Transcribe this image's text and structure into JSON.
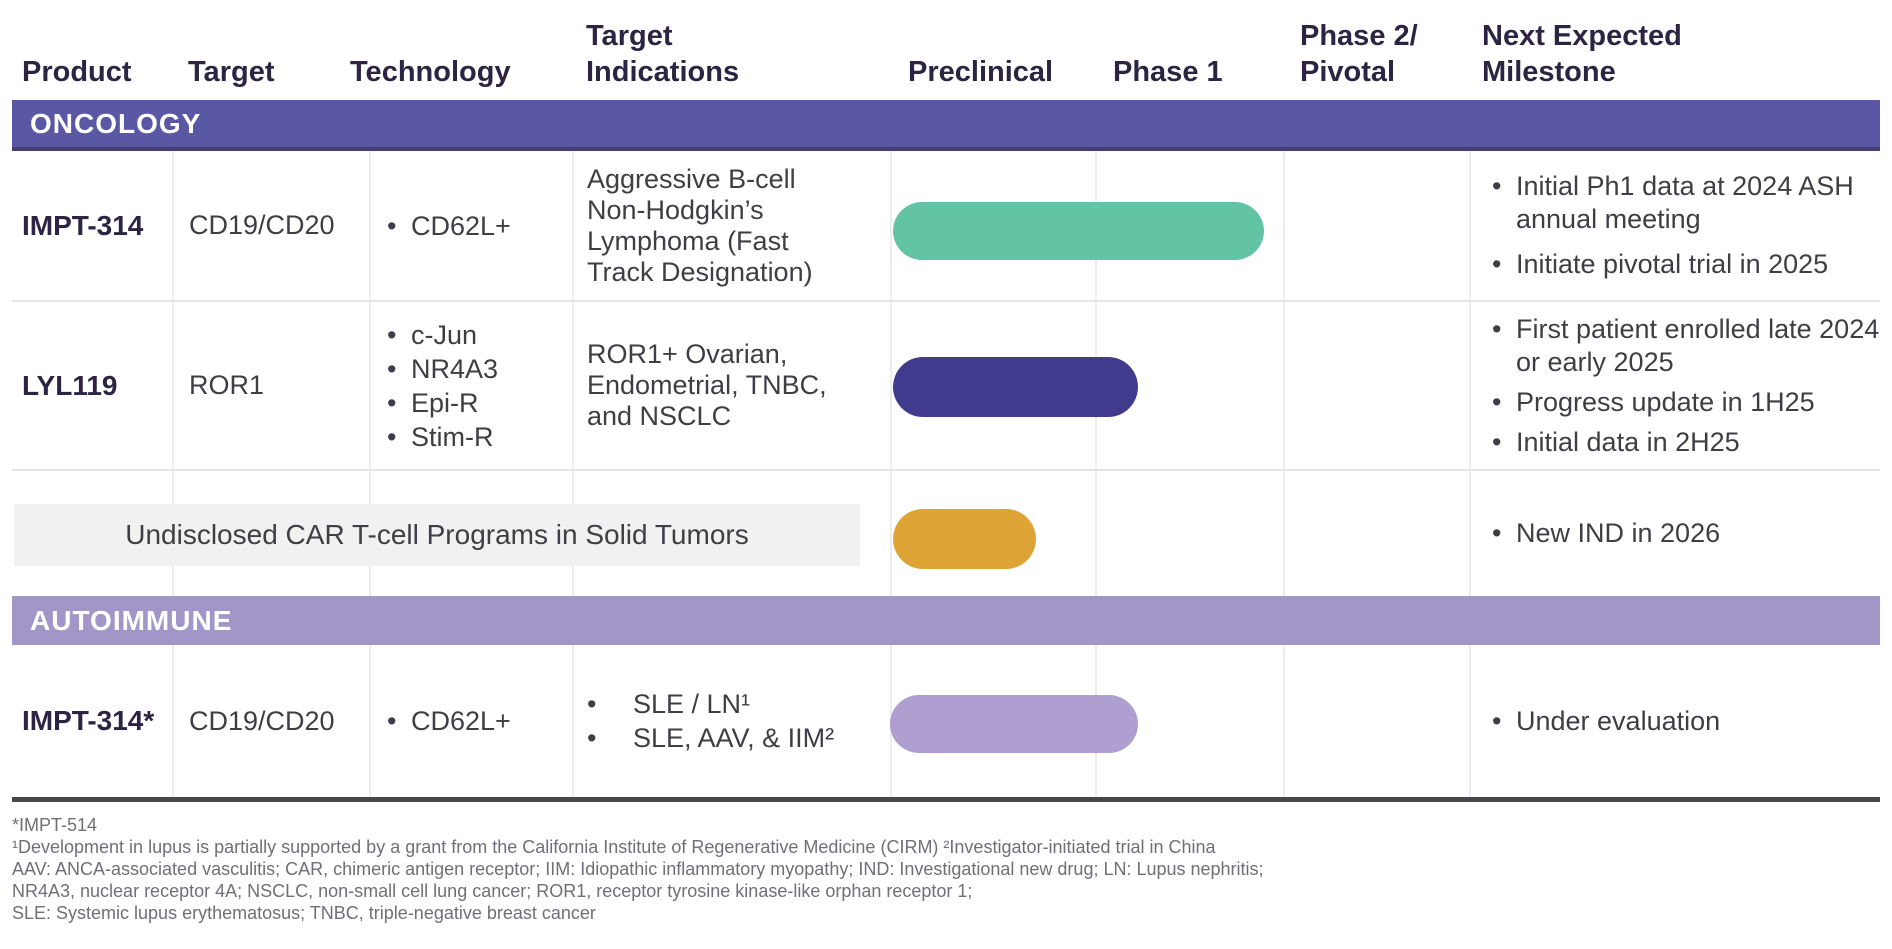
{
  "columns": {
    "product": "Product",
    "target": "Target",
    "technology": "Technology",
    "target_indications": "Target\nIndications",
    "preclinical": "Preclinical",
    "phase1": "Phase 1",
    "phase2_pivotal": "Phase 2/\nPivotal",
    "next_milestone": "Next Expected\nMilestone"
  },
  "sections": {
    "oncology": {
      "label": "ONCOLOGY",
      "color": "#5A57A4"
    },
    "autoimmune": {
      "label": "AUTOIMMUNE",
      "color": "#A295C8"
    }
  },
  "rows": {
    "impt314_onc": {
      "product": "IMPT-314",
      "target": "CD19/CD20",
      "technology": [
        "CD62L+"
      ],
      "indications": "Aggressive B-cell Non-Hodgkin’s Lymphoma (Fast Track Designation)",
      "phase_bar": {
        "color": "#62C3A5",
        "span": "Preclinical through Phase 1"
      },
      "milestones": [
        "Initial Ph1 data at 2024 ASH annual meeting",
        "Initiate pivotal trial in 2025"
      ]
    },
    "lyl119": {
      "product": "LYL119",
      "target": "ROR1",
      "technology": [
        "c-Jun",
        "NR4A3",
        "Epi-R",
        "Stim-R"
      ],
      "indications": "ROR1+ Ovarian, Endometrial, TNBC, and NSCLC",
      "phase_bar": {
        "color": "#413B8D",
        "span": "Preclinical into early Phase 1"
      },
      "milestones": [
        "First patient enrolled late 2024 or early 2025",
        "Progress update in 1H25",
        "Initial data in 2H25"
      ]
    },
    "undisclosed": {
      "label": "Undisclosed CAR T-cell Programs in Solid Tumors",
      "phase_bar": {
        "color": "#DFA436",
        "span": "Preclinical"
      },
      "milestones": [
        "New IND in 2026"
      ]
    },
    "impt314_auto": {
      "product": "IMPT-314*",
      "target": "CD19/CD20",
      "technology": [
        "CD62L+"
      ],
      "indications": [
        "SLE / LN¹",
        "SLE, AAV, & IIM²"
      ],
      "phase_bar": {
        "color": "#AF9ED0",
        "span": "Preclinical into early Phase 1"
      },
      "milestones": [
        "Under evaluation"
      ]
    }
  },
  "bullet": "•",
  "footnotes": [
    "*IMPT-514",
    "¹Development in lupus is partially supported by a grant from the California Institute of Regenerative Medicine (CIRM) ²Investigator-initiated trial in China",
    "AAV: ANCA-associated vasculitis; CAR, chimeric antigen receptor; IIM: Idiopathic inflammatory myopathy; IND: Investigational new drug; LN: Lupus nephritis;",
    "NR4A3, nuclear receptor 4A; NSCLC, non-small cell lung cancer; ROR1, receptor tyrosine kinase-like orphan receptor 1;",
    "SLE: Systemic lupus erythematosus; TNBC, triple-negative breast cancer"
  ],
  "colors": {
    "header_text": "#2D2443",
    "body_text": "#3E3E44",
    "footnote_text": "#6F6F77",
    "oncology_band": "#5A57A4",
    "autoimmune_band": "#A295C8",
    "bar_teal": "#62C3A5",
    "bar_indigo": "#413B8D",
    "bar_gold": "#DFA436",
    "bar_lavender": "#AF9ED0",
    "gridline": "#EDEDED",
    "undisclosed_box_bg": "#F1F1F1"
  }
}
